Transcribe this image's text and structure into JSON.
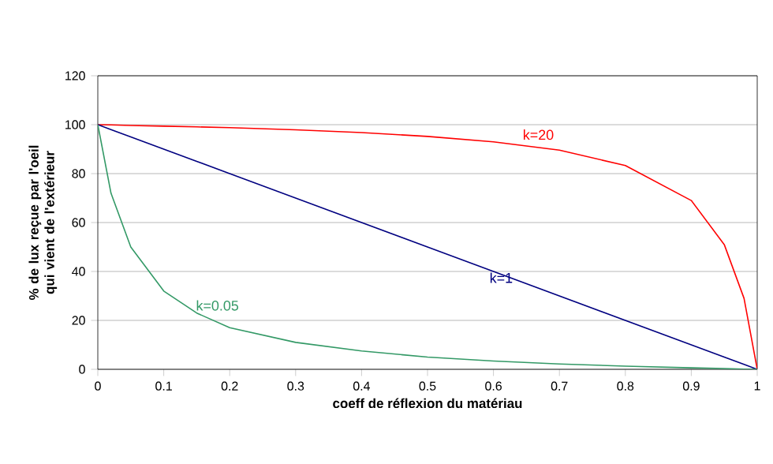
{
  "chart_data": {
    "type": "line",
    "xlabel": "coeff de réflexion du matériau",
    "ylabel": "% de lux reçue par l'oeil qui vient de l'extérieur",
    "xlim": [
      0,
      1
    ],
    "ylim": [
      0,
      120
    ],
    "xticks": [
      0,
      0.1,
      0.2,
      0.3,
      0.4,
      0.5,
      0.6,
      0.7,
      0.8,
      0.9,
      1
    ],
    "yticks": [
      0,
      20,
      40,
      60,
      80,
      100,
      120
    ],
    "grid": "y",
    "legend": false,
    "marker": "none",
    "x": [
      0,
      0.02,
      0.05,
      0.1,
      0.15,
      0.2,
      0.3,
      0.4,
      0.5,
      0.6,
      0.7,
      0.8,
      0.9,
      0.95,
      0.98,
      1
    ],
    "series": [
      {
        "name": "k=20",
        "color": "#ff0000",
        "values": [
          100,
          99.9,
          99.7,
          99.4,
          99.1,
          98.8,
          97.9,
          96.8,
          95.2,
          93,
          89.6,
          83.3,
          69,
          51,
          29,
          0
        ]
      },
      {
        "name": "k=1",
        "color": "#000080",
        "values": [
          100,
          98,
          95,
          90,
          85,
          80,
          70,
          60,
          50,
          40,
          30,
          20,
          10,
          5,
          2,
          0
        ]
      },
      {
        "name": "k=0.05",
        "color": "#339966",
        "values": [
          100,
          72,
          50,
          32,
          23,
          17,
          11,
          7.5,
          5,
          3.4,
          2.2,
          1.3,
          0.6,
          0.3,
          0.1,
          0
        ]
      }
    ]
  }
}
